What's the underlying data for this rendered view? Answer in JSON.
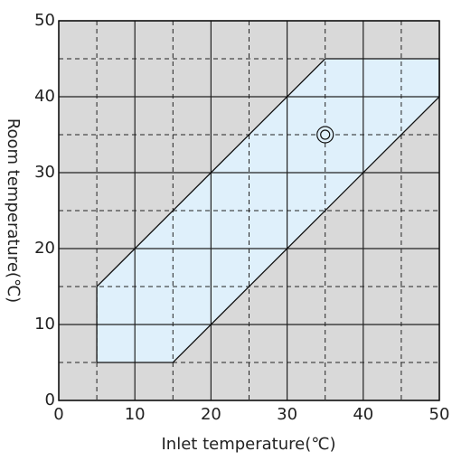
{
  "chart_data": {
    "type": "area",
    "xlabel": "Inlet temperature(℃)",
    "ylabel": "Room temperature(℃)",
    "series": [
      {
        "x": [
          5,
          15,
          50,
          50,
          35,
          5
        ],
        "values": [
          5,
          5,
          40,
          45,
          45,
          15
        ],
        "color": "#dff0fb"
      }
    ],
    "marker": {
      "x": 35,
      "y": 35
    },
    "background": "#d9d9d9",
    "xlim": [
      0,
      50
    ],
    "ylim": [
      0,
      50
    ],
    "xticks": [
      0,
      10,
      20,
      30,
      40,
      50
    ],
    "yticks": [
      0,
      10,
      20,
      30,
      40,
      50
    ],
    "xminorticks": [
      5,
      15,
      25,
      35,
      45
    ],
    "yminorticks": [
      5,
      15,
      25,
      35,
      45
    ],
    "grid": true
  }
}
